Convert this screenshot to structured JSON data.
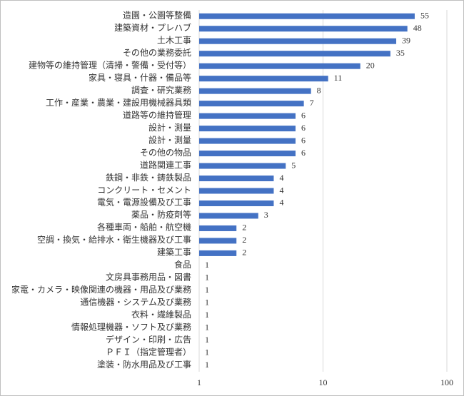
{
  "chart_data": {
    "type": "bar",
    "orientation": "horizontal",
    "categories": [
      "造園・公園等整備",
      "建築資材・プレハブ",
      "土木工事",
      "その他の業務委託",
      "建物等の維持管理（清掃・警備・受付等）",
      "家具・寝具・什器・備品等",
      "調査・研究業務",
      "工作・産業・農業・建設用機械器具類",
      "道路等の維持管理",
      "設計・測量",
      "設計・測量",
      "その他の物品",
      "道路関連工事",
      "鉄鋼・非鉄・鋳鉄製品",
      "コンクリート・セメント",
      "電気・電源設備及び工事",
      "薬品・防疫剤等",
      "各種車両・船舶・航空機",
      "空調・換気・給排水・衛生機器及び工事",
      "建築工事",
      "食品",
      "文房具事務用品・図書",
      "家電・カメラ・映像関連の機器・用品及び業務",
      "通信機器・システム及び業務",
      "衣料・繊維製品",
      "情報処理機器・ソフト及び業務",
      "デザイン・印刷・広告",
      "ＰＦＩ（指定管理者）",
      "塗装・防水用品及び工事"
    ],
    "values": [
      55,
      48,
      39,
      35,
      20,
      11,
      8,
      7,
      6,
      6,
      6,
      6,
      5,
      4,
      4,
      4,
      3,
      2,
      2,
      2,
      1,
      1,
      1,
      1,
      1,
      1,
      1,
      1,
      1
    ],
    "color": "#4472c4",
    "xscale": "log",
    "xlim": [
      1,
      100
    ],
    "xticks": [
      1,
      10,
      100
    ],
    "grid": true
  }
}
